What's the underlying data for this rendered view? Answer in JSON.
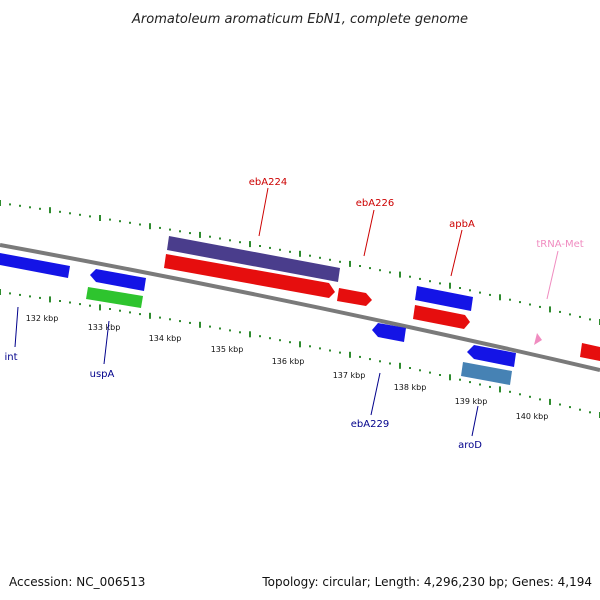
{
  "title": "Aromatoleum aromaticum EbN1, complete genome",
  "footer": {
    "accession": "Accession: NC_006513",
    "summary": "Topology: circular; Length: 4,296,230 bp; Genes: 4,194"
  },
  "scale": {
    "unit": "kbp",
    "ticks": [
      "132 kbp",
      "133 kbp",
      "134 kbp",
      "135 kbp",
      "136 kbp",
      "137 kbp",
      "138 kbp",
      "139 kbp",
      "140 kbp"
    ]
  },
  "colors": {
    "backbone": "#888888",
    "track_dots": "#2e8b2e",
    "gene_blue": "#1414e6",
    "gene_red": "#e60e0e",
    "gene_purple": "#4a3d8c",
    "gene_green": "#2ec42e",
    "gene_steel": "#4682b4",
    "trna_pink": "#f08cc0",
    "label_red": "#cc0000",
    "label_blue": "#00008b",
    "label_pink": "#f08cc0"
  },
  "labels": {
    "int": "int",
    "uspA": "uspA",
    "ebA224": "ebA224",
    "ebA226": "ebA226",
    "apbA": "apbA",
    "tRNA_Met": "tRNA-Met",
    "ebA229": "ebA229",
    "aroD": "aroD"
  }
}
